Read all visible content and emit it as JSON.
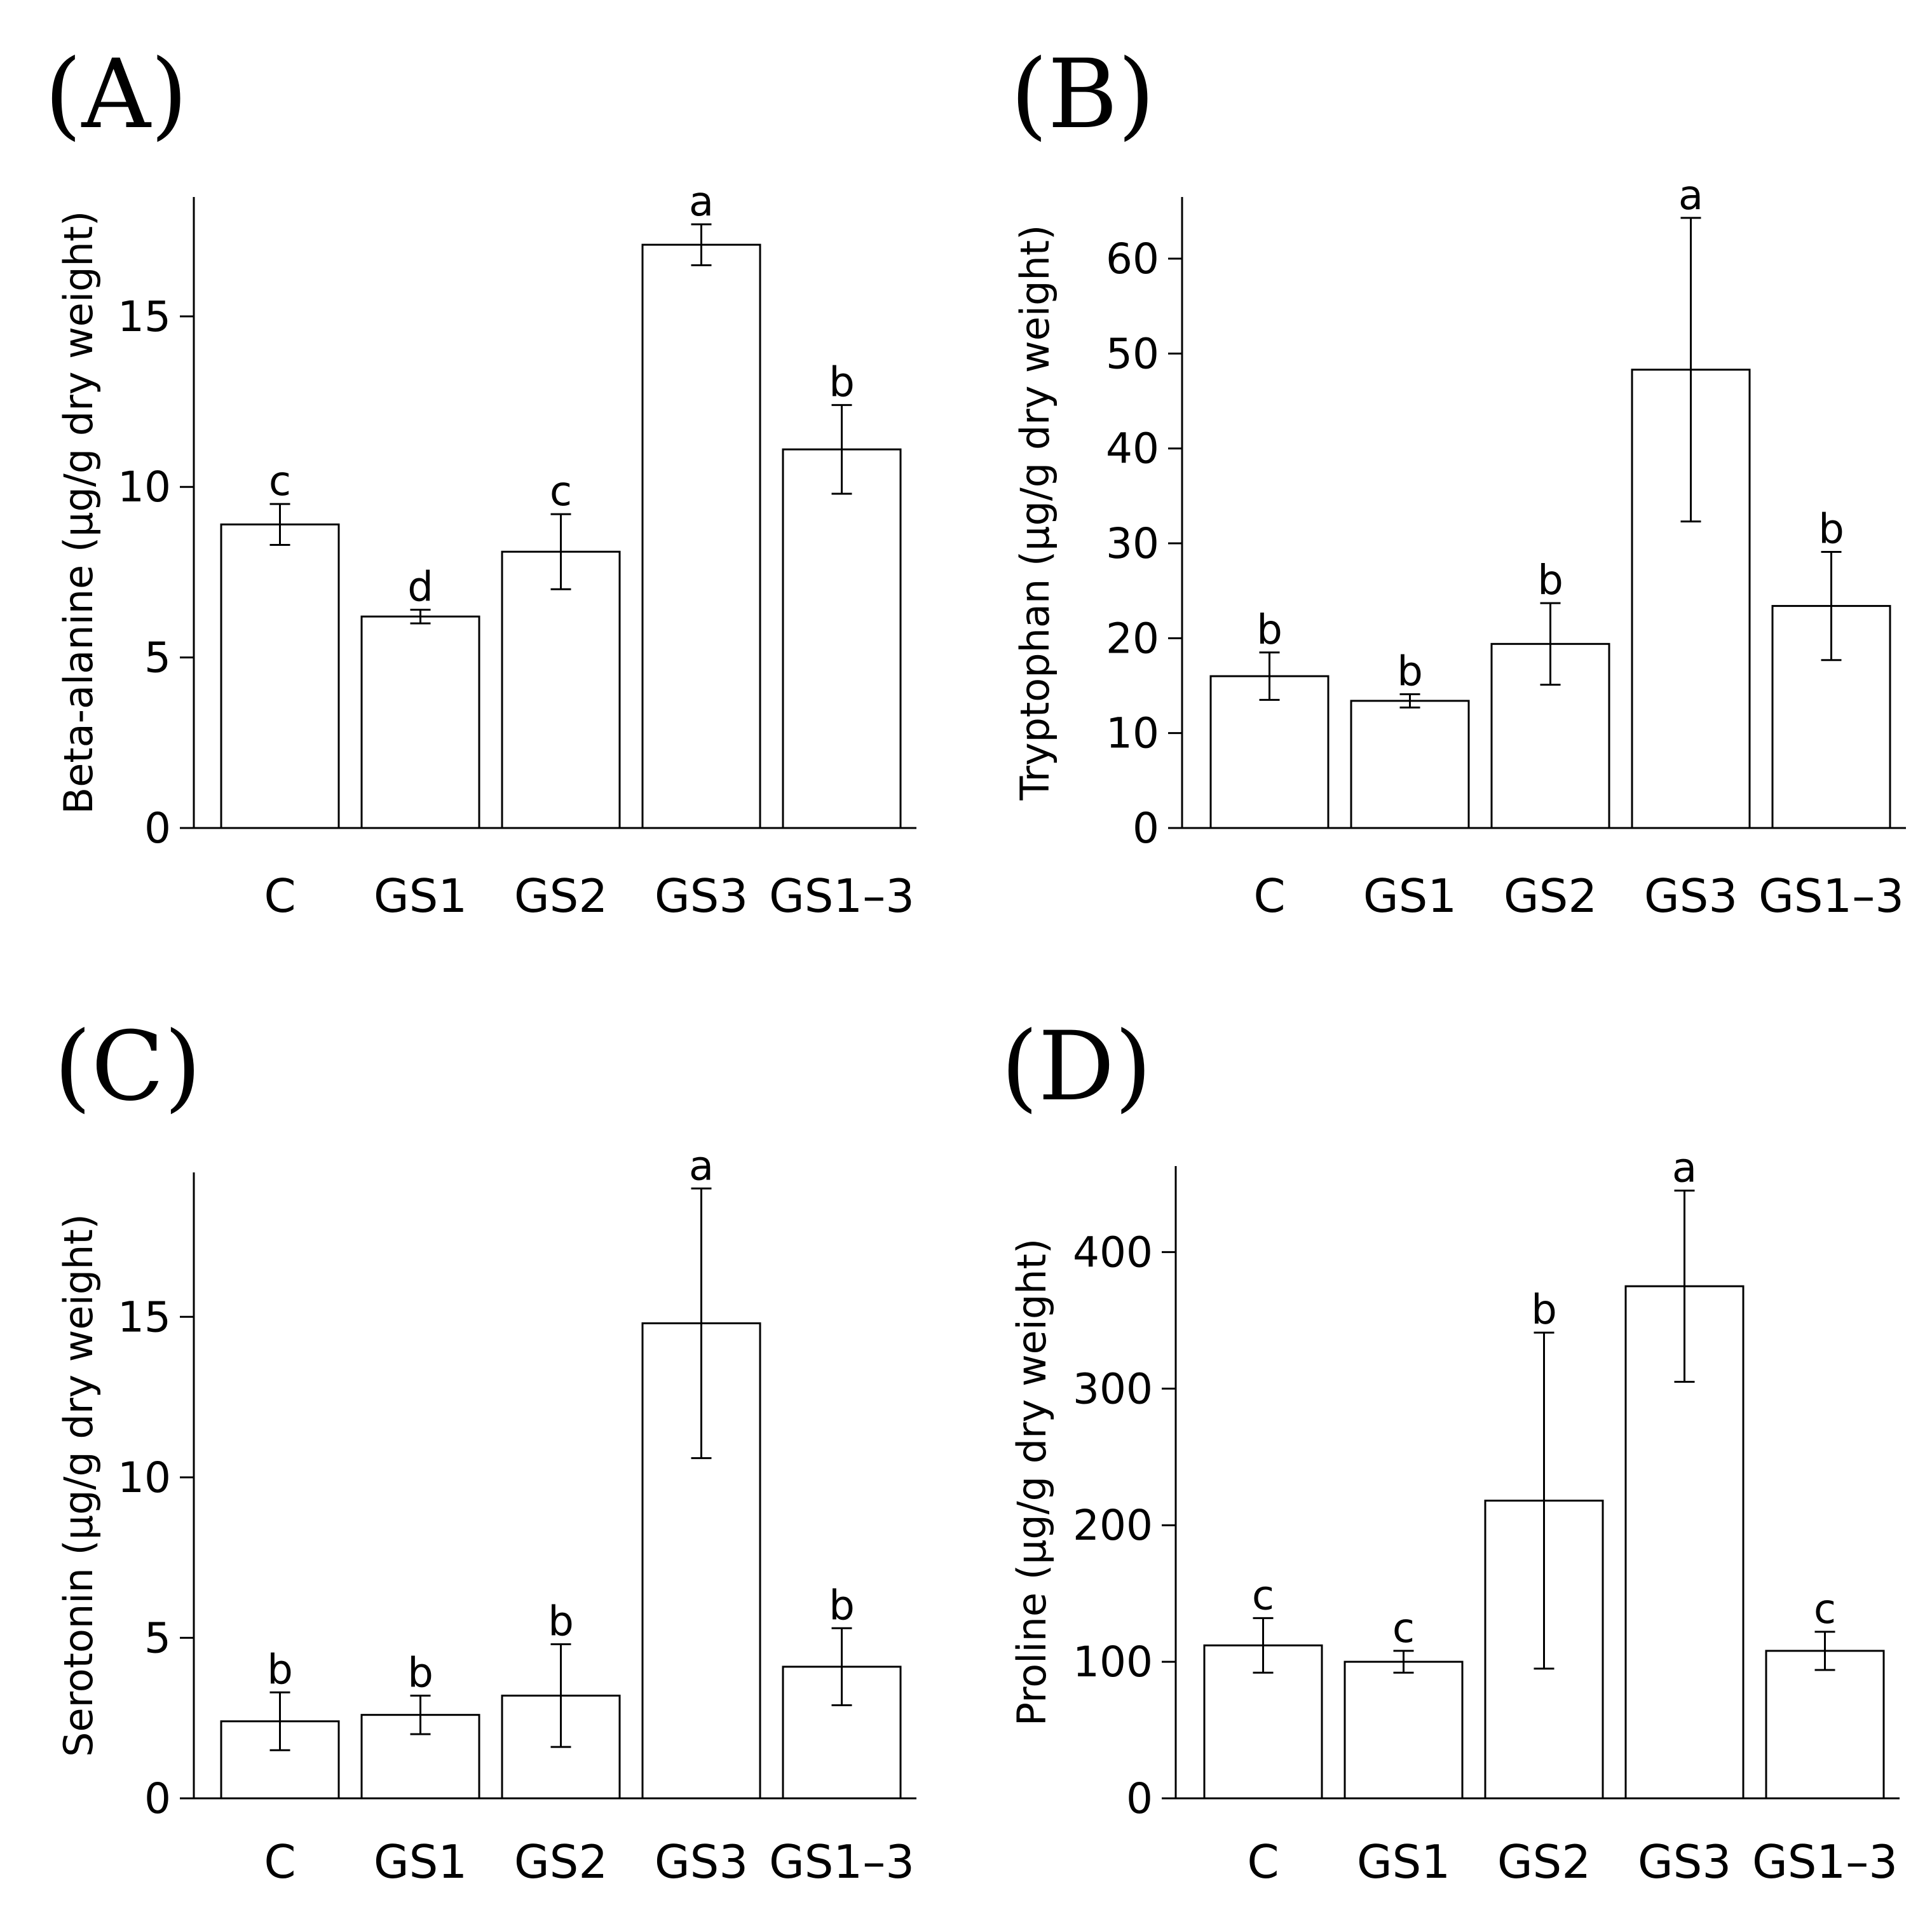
{
  "chart_data": [
    {
      "type": "bar",
      "panel": "(A)",
      "ylabel": "Beta-alanine (µg/g dry weight)",
      "categories": [
        "C",
        "GS1",
        "GS2",
        "GS3",
        "GS1–3"
      ],
      "values": [
        8.9,
        6.2,
        8.1,
        17.1,
        11.1
      ],
      "errors": [
        0.6,
        0.2,
        1.1,
        0.6,
        1.3
      ],
      "significance": [
        "c",
        "d",
        "c",
        "a",
        "b"
      ],
      "yticks": [
        0,
        5,
        10,
        15
      ],
      "ylim": [
        0,
        18.5
      ],
      "grid": false
    },
    {
      "type": "bar",
      "panel": "(B)",
      "ylabel": "Tryptophan (µg/g dry weight)",
      "categories": [
        "C",
        "GS1",
        "GS2",
        "GS3",
        "GS1–3"
      ],
      "values": [
        16.0,
        13.4,
        19.4,
        48.3,
        23.4
      ],
      "errors": [
        2.5,
        0.7,
        4.3,
        16.0,
        5.7
      ],
      "significance": [
        "b",
        "b",
        "b",
        "a",
        "b"
      ],
      "yticks": [
        0,
        10,
        20,
        30,
        40,
        50,
        60
      ],
      "ylim": [
        0,
        66.5
      ],
      "grid": false
    },
    {
      "type": "bar",
      "panel": "(C)",
      "ylabel": "Serotonin (µg/g dry weight)",
      "categories": [
        "C",
        "GS1",
        "GS2",
        "GS3",
        "GS1–3"
      ],
      "values": [
        2.4,
        2.6,
        3.2,
        14.8,
        4.1
      ],
      "errors": [
        0.9,
        0.6,
        1.6,
        4.2,
        1.2
      ],
      "significance": [
        "b",
        "b",
        "b",
        "a",
        "b"
      ],
      "yticks": [
        0,
        5,
        10,
        15
      ],
      "ylim": [
        0,
        19.5
      ],
      "grid": false
    },
    {
      "type": "bar",
      "panel": "(D)",
      "ylabel": "Proline (µg/g dry weight)",
      "categories": [
        "C",
        "GS1",
        "GS2",
        "GS3",
        "GS1–3"
      ],
      "values": [
        112,
        100,
        218,
        375,
        108
      ],
      "errors": [
        20,
        8,
        123,
        70,
        14
      ],
      "significance": [
        "c",
        "c",
        "b",
        "a",
        "c"
      ],
      "yticks": [
        0,
        100,
        200,
        300,
        400
      ],
      "ylim": [
        0,
        463
      ],
      "grid": false
    }
  ]
}
